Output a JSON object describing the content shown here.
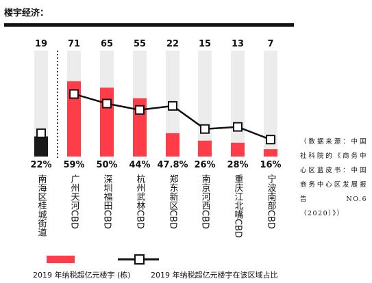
{
  "title": "楼宇经济：",
  "source_note": "（数据来源：中国社科院的《商务中心区蓝皮书：中国商务中心区发展报告NO.6（2020）》）",
  "legend": {
    "bar_label": "2019 年纳税超亿元楼宇 (栋)",
    "line_label": "2019 年纳税超亿元楼宇在该区域占比"
  },
  "colors": {
    "bar": "#ff3d48",
    "highlight_bar": "#1a1a1a",
    "track": "#ececec",
    "line": "#111111"
  },
  "chart_data": {
    "type": "bar",
    "categories": [
      "南海区桂城街道",
      "广州天河CBD",
      "深圳福田CBD",
      "杭州武林CBD",
      "郑东新区CBD",
      "南京河西CBD",
      "重庆江北嘴CBD",
      "宁波南部CBD"
    ],
    "series": [
      {
        "name": "2019 年纳税超亿元楼宇 (栋)",
        "type": "bar",
        "values": [
          19,
          71,
          65,
          55,
          22,
          15,
          13,
          7
        ],
        "labels": [
          "19",
          "71",
          "65",
          "55",
          "22",
          "15",
          "13",
          "7"
        ]
      },
      {
        "name": "2019 年纳税超亿元楼宇在该区域占比",
        "type": "line",
        "values": [
          22,
          59,
          50,
          44,
          47.8,
          26,
          28,
          16
        ],
        "labels": [
          "22%",
          "59%",
          "50%",
          "44%",
          "47.8%",
          "26%",
          "28%",
          "16%"
        ]
      }
    ],
    "highlight_index": 0,
    "ylim": [
      0,
      100
    ],
    "legend_position": "bottom"
  }
}
